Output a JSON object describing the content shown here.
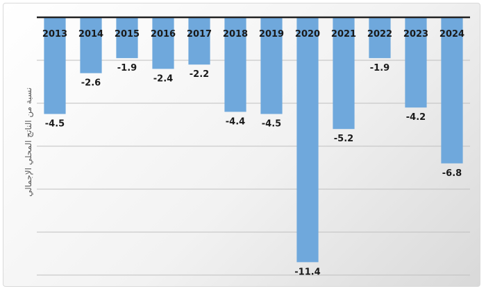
{
  "chart_data": {
    "type": "bar",
    "title": "",
    "xlabel": "",
    "ylabel": "نسبة من الناتج المحلي الإجمالي",
    "categories": [
      "2013",
      "2014",
      "2015",
      "2016",
      "2017",
      "2018",
      "2019",
      "2020",
      "2021",
      "2022",
      "2023",
      "2024"
    ],
    "values": [
      -4.5,
      -2.6,
      -1.9,
      -2.4,
      -2.2,
      -4.4,
      -4.5,
      -11.4,
      -5.2,
      -1.9,
      -4.2,
      -6.8
    ],
    "value_labels": [
      "-4.5",
      "-2.6",
      "-1.9",
      "-2.4",
      "-2.2",
      "-4.4",
      "-4.5",
      "-11.4",
      "-5.2",
      "-1.9",
      "-4.2",
      "-6.8"
    ],
    "ylim": [
      -12,
      0
    ],
    "grid": true,
    "legend": "none",
    "colors": {
      "bar": "#6fa8dc",
      "axis": "#222222",
      "grid": "#bfbfbf",
      "text": "#1a1a1a"
    }
  }
}
